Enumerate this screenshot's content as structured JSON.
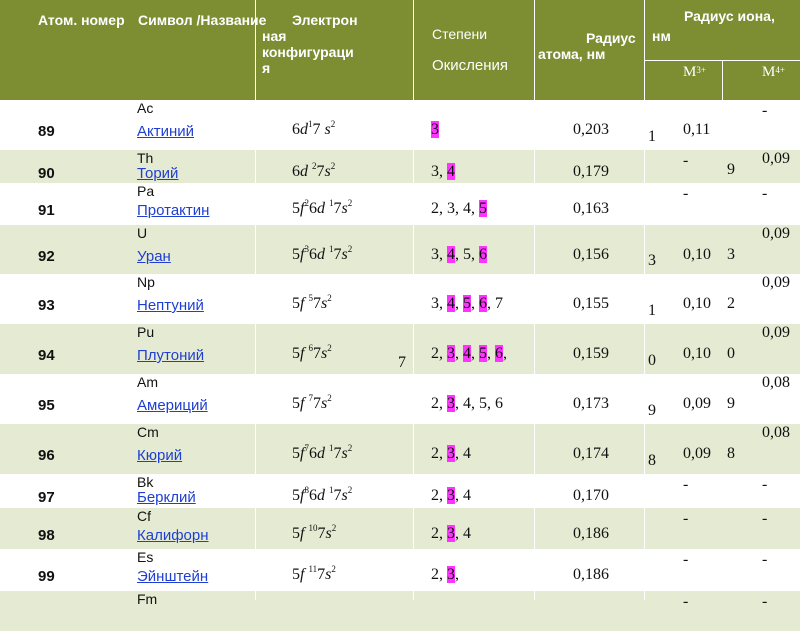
{
  "header": {
    "col1": "Атом. номер",
    "col2": "Символ /Название",
    "col3_lines": [
      "Электрон",
      "ная",
      "конфигураци",
      "я"
    ],
    "col4_line1": "Степени",
    "col4_line2": "Окисления",
    "col5_line1": "Радиус",
    "col5_line2": "атома, нм",
    "col6_line1": "Радиус иона,",
    "col6_line2": "нм",
    "m3": "M",
    "m3_sup": "3+",
    "m4": "M",
    "m4_sup": "4+"
  },
  "rows": [
    {
      "num": "89",
      "sym": "Ac",
      "name": "Актиний",
      "cfg_html": "6<i>d</i><sup>1</sup>7 <i>s</i><sup>2</sup>",
      "ox_html": "<span class=\"hl\">3</span>",
      "rad": "0,203",
      "m3a": "0,11",
      "m3b": "1",
      "m4a": "-",
      "m4b": ""
    },
    {
      "num": "90",
      "sym": "Th",
      "name": "Торий",
      "cfg_html": "6<i>d</i> <sup>2</sup>7<i>s</i><sup>2</sup>",
      "ox_html": "3, <span class=\"hl\">4</span>",
      "rad": "0,179",
      "m3a": "-",
      "m3b": "9",
      "m4a": "0,09",
      "m4b": ""
    },
    {
      "num": "91",
      "sym": "Pa",
      "name": "Протактин",
      "cfg_html": "5<i>f</i><sup>2</sup>6<i>d</i> <sup>1</sup>7<i>s</i><sup>2</sup>",
      "ox_html": "2, 3, 4, <span class=\"hl\">5</span>",
      "rad": "0,163",
      "m3a": "-",
      "m3b": "",
      "m4a": "-",
      "m4b": ""
    },
    {
      "num": "92",
      "sym": "U",
      "name": "Уран",
      "cfg_html": "5<i>f</i><sup>3</sup>6<i>d</i> <sup>1</sup>7<i>s</i><sup>2</sup>",
      "ox_html": "3, <span class=\"hl\">4</span>, 5, <span class=\"hl\">6</span>",
      "rad": "0,156",
      "m3a": "0,10",
      "m3b": "3",
      "m4a": "0,09",
      "m4b": "3"
    },
    {
      "num": "93",
      "sym": "Np",
      "name": "Нептуний",
      "cfg_html": "5<i>f</i> <sup>5</sup>7<i>s</i><sup>2</sup>",
      "ox_html": "3, <span class=\"hl\">4</span>, <span class=\"hl\">5</span>, <span class=\"hl\">6</span>, 7",
      "rad": "0,155",
      "m3a": "0,10",
      "m3b": "1",
      "m4a": "0,09",
      "m4b": "2"
    },
    {
      "num": "94",
      "sym": "Pu",
      "name": "Плутоний",
      "cfg_html": "5<i>f</i> <sup>6</sup>7<i>s</i><sup>2</sup>",
      "ox_html": "2, <span class=\"hl\">3</span>, <span class=\"hl\">4</span>, <span class=\"hl\">5</span>, <span class=\"hl\">6</span>,",
      "rad": "0,159",
      "m3a": "0,10",
      "m3b": "0",
      "m4a": "0,09",
      "m4b": "0",
      "extra": "7"
    },
    {
      "num": "95",
      "sym": "Am",
      "name": "Америций",
      "cfg_html": "5<i>f</i> <sup>7</sup>7<i>s</i><sup>2</sup>",
      "ox_html": "2, <span class=\"hl\">3</span>, 4, 5, 6",
      "rad": "0,173",
      "m3a": "0,09",
      "m3b": "9",
      "m4a": "0,08",
      "m4b": "9"
    },
    {
      "num": "96",
      "sym": "Cm",
      "name": "Кюрий",
      "cfg_html": "5<i>f</i><sup>7</sup>6<i>d</i> <sup>1</sup>7<i>s</i><sup>2</sup>",
      "ox_html": "2, <span class=\"hl\">3</span>, 4",
      "rad": "0,174",
      "m3a": "0,09",
      "m3b": "8",
      "m4a": "0,08",
      "m4b": "8"
    },
    {
      "num": "97",
      "sym": "Bk",
      "name": "Берклий",
      "cfg_html": "5<i>f</i><sup>8</sup>6<i>d</i> <sup>1</sup>7<i>s</i><sup>2</sup>",
      "ox_html": "2, <span class=\"hl\">3</span>, 4",
      "rad": "0,170",
      "m3a": "-",
      "m3b": "",
      "m4a": "-",
      "m4b": ""
    },
    {
      "num": "98",
      "sym": "Cf",
      "name": "Калифорн",
      "cfg_html": "5<i>f</i> <sup>10</sup>7<i>s</i><sup>2</sup>",
      "ox_html": "2, <span class=\"hl\">3</span>, 4",
      "rad": "0,186",
      "m3a": "-",
      "m3b": "",
      "m4a": "-",
      "m4b": ""
    },
    {
      "num": "99",
      "sym": "Es",
      "name": "Эйнштейн",
      "cfg_html": "5<i>f</i> <sup>11</sup>7<i>s</i><sup>2</sup>",
      "ox_html": "2, <span class=\"hl\">3</span>,",
      "rad": "0,186",
      "m3a": "-",
      "m3b": "",
      "m4a": "-",
      "m4b": ""
    },
    {
      "num": "",
      "sym": "Fm",
      "name": "",
      "cfg_html": "",
      "ox_html": "",
      "rad": "",
      "m3a": "-",
      "m3b": "",
      "m4a": "-",
      "m4b": ""
    }
  ]
}
